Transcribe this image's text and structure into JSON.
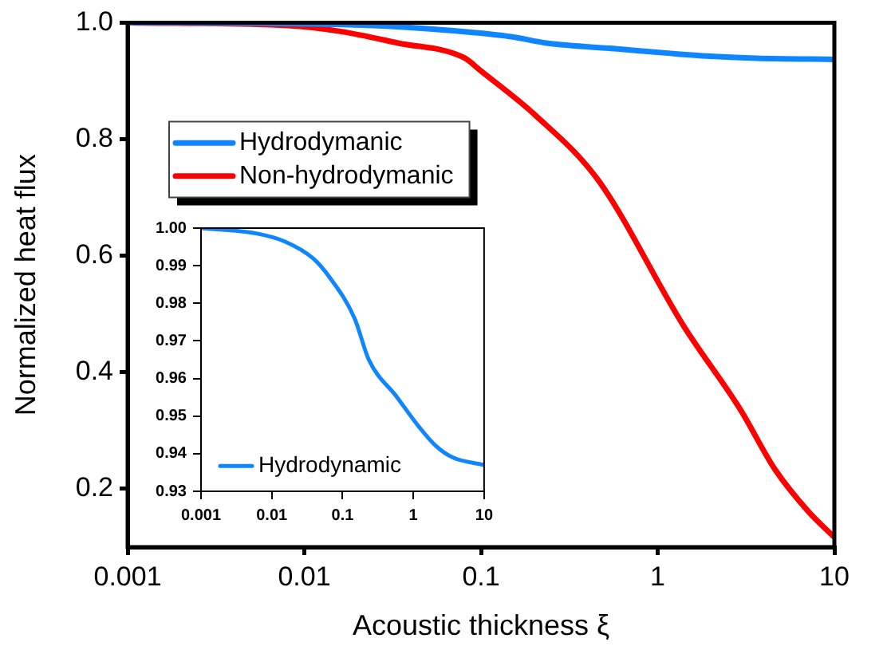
{
  "chart_data": [
    {
      "type": "line",
      "xlabel": "Acoustic thickness ξ",
      "ylabel": "Normalized heat flux",
      "log": "x",
      "xlim": [
        0.001,
        10
      ],
      "ylim": [
        0.1,
        1.0
      ],
      "xticks": [
        0.001,
        0.01,
        0.1,
        1,
        10
      ],
      "yticks": [
        0.2,
        0.4,
        0.6,
        0.8,
        {
          "value": 1.0,
          "label": "1.0"
        }
      ],
      "grid": false,
      "legend": "top left",
      "series": [
        {
          "name": "Hydrodymanic",
          "color": "#0f86ff",
          "x": [
            0.001,
            0.006,
            0.015,
            0.038,
            0.065,
            0.148,
            0.235,
            0.59,
            1.22,
            2.1,
            3.6,
            10
          ],
          "values": [
            1.0,
            0.999,
            0.997,
            0.992,
            0.987,
            0.976,
            0.965,
            0.955,
            0.947,
            0.942,
            0.939,
            0.937
          ]
        },
        {
          "name": "Non-hydrodymanic",
          "color": "#ff0000",
          "x": [
            0.001,
            0.008,
            0.016,
            0.034,
            0.08,
            0.1,
            0.205,
            0.46,
            1.4,
            2.94,
            4.62,
            7.18,
            10
          ],
          "values": [
            1.0,
            0.995,
            0.985,
            0.965,
            0.94,
            0.917,
            0.84,
            0.73,
            0.48,
            0.336,
            0.233,
            0.16,
            0.117
          ]
        }
      ]
    },
    {
      "type": "line",
      "log": "x",
      "xlim": [
        0.001,
        10
      ],
      "ylim": [
        0.93,
        1.0
      ],
      "xticks": [
        0.001,
        0.01,
        0.1,
        1,
        10
      ],
      "yticks": [
        0.93,
        0.94,
        0.95,
        0.96,
        0.97,
        0.98,
        0.99,
        {
          "value": 1.0,
          "label": "1.00"
        }
      ],
      "grid": false,
      "legend": "bottom left",
      "series": [
        {
          "name": "Hydrodynamic",
          "color": "#0f86ff",
          "x": [
            0.001,
            0.006,
            0.015,
            0.038,
            0.065,
            0.148,
            0.235,
            0.59,
            1.22,
            2.1,
            3.6,
            10
          ],
          "values": [
            1.0,
            0.9986,
            0.9965,
            0.992,
            0.987,
            0.976,
            0.965,
            0.955,
            0.947,
            0.942,
            0.939,
            0.937
          ]
        }
      ]
    }
  ]
}
